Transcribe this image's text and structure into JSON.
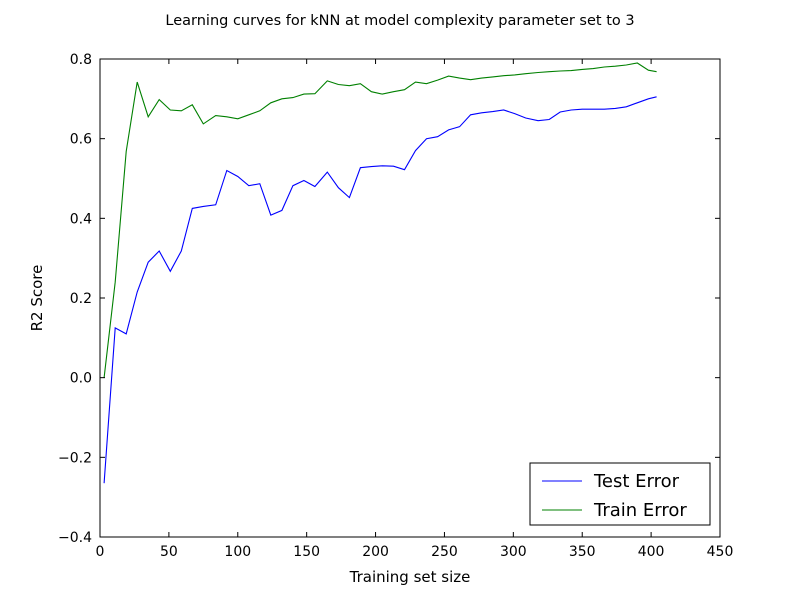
{
  "chart_data": {
    "type": "line",
    "title": "Learning curves for kNN at model complexity parameter set to 3",
    "xlabel": "Training set size",
    "ylabel": "R2 Score",
    "xlim": [
      0,
      450
    ],
    "ylim": [
      -0.4,
      0.8
    ],
    "xticks": [
      0,
      50,
      100,
      150,
      200,
      250,
      300,
      350,
      400,
      450
    ],
    "yticks": [
      -0.4,
      -0.2,
      0.0,
      0.2,
      0.4,
      0.6,
      0.8
    ],
    "xtick_labels": [
      "0",
      "50",
      "100",
      "150",
      "200",
      "250",
      "300",
      "350",
      "400",
      "450"
    ],
    "ytick_labels": [
      "−0.4",
      "−0.2",
      "0.0",
      "0.2",
      "0.4",
      "0.6",
      "0.8"
    ],
    "grid": false,
    "legend_position": "bottom-right",
    "series": [
      {
        "name": "Test Error",
        "color": "#0000ff",
        "x": [
          3,
          11,
          19,
          27,
          35,
          43,
          51,
          59,
          67,
          75,
          84,
          92,
          100,
          108,
          116,
          124,
          132,
          140,
          148,
          156,
          165,
          173,
          181,
          189,
          197,
          205,
          213,
          221,
          229,
          237,
          245,
          253,
          261,
          269,
          277,
          285,
          293,
          301,
          309,
          318,
          326,
          334,
          342,
          350,
          358,
          366,
          374,
          382,
          390,
          398,
          404
        ],
        "y": [
          -0.265,
          0.125,
          0.11,
          0.215,
          0.29,
          0.318,
          0.267,
          0.318,
          0.425,
          0.43,
          0.434,
          0.52,
          0.505,
          0.482,
          0.487,
          0.408,
          0.42,
          0.482,
          0.495,
          0.48,
          0.516,
          0.477,
          0.452,
          0.527,
          0.53,
          0.532,
          0.531,
          0.522,
          0.57,
          0.6,
          0.605,
          0.622,
          0.63,
          0.66,
          0.665,
          0.668,
          0.672,
          0.663,
          0.652,
          0.645,
          0.648,
          0.667,
          0.672,
          0.674,
          0.674,
          0.674,
          0.676,
          0.68,
          0.69,
          0.7,
          0.705
        ]
      },
      {
        "name": "Train Error",
        "color": "#008000",
        "x": [
          3,
          11,
          19,
          27,
          35,
          43,
          51,
          59,
          67,
          75,
          84,
          92,
          100,
          108,
          116,
          124,
          132,
          140,
          148,
          156,
          165,
          173,
          181,
          189,
          197,
          205,
          213,
          221,
          229,
          237,
          245,
          253,
          261,
          269,
          277,
          285,
          293,
          301,
          309,
          318,
          326,
          334,
          342,
          350,
          358,
          366,
          374,
          382,
          390,
          398,
          404
        ],
        "y": [
          0.0,
          0.24,
          0.568,
          0.742,
          0.655,
          0.698,
          0.672,
          0.67,
          0.685,
          0.637,
          0.658,
          0.655,
          0.65,
          0.66,
          0.67,
          0.69,
          0.7,
          0.703,
          0.712,
          0.713,
          0.745,
          0.736,
          0.733,
          0.738,
          0.718,
          0.712,
          0.718,
          0.723,
          0.742,
          0.738,
          0.747,
          0.757,
          0.752,
          0.748,
          0.752,
          0.755,
          0.758,
          0.76,
          0.763,
          0.766,
          0.768,
          0.77,
          0.771,
          0.774,
          0.776,
          0.78,
          0.782,
          0.785,
          0.79,
          0.772,
          0.768
        ]
      }
    ]
  }
}
